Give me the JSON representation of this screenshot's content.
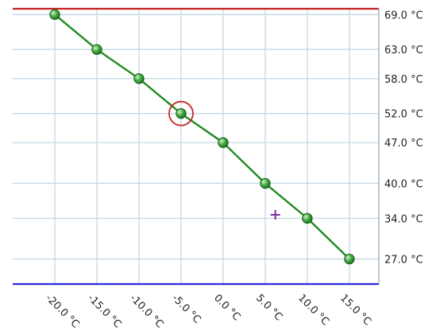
{
  "chart_data": {
    "type": "line",
    "x": [
      -20,
      -15,
      -10,
      -5,
      0,
      5,
      10,
      15
    ],
    "y": [
      69,
      63,
      58,
      52,
      47,
      40,
      34,
      27
    ],
    "x_tick_labels": [
      "-20.0 °C",
      "-15.0 °C",
      "-10.0 °C",
      "-5.0 °C",
      "0.0 °C",
      "5.0 °C",
      "10.0 °C",
      "15.0 °C"
    ],
    "y_tick_values": [
      69,
      63,
      58,
      52,
      47,
      40,
      34,
      27
    ],
    "y_tick_labels": [
      "69.0 °C",
      "63.0 °C",
      "58.0 °C",
      "52.0 °C",
      "47.0 °C",
      "40.0 °C",
      "34.0 °C",
      "27.0 °C"
    ],
    "xlim": [
      -25,
      18.5
    ],
    "ylim": [
      22.7,
      70.0
    ],
    "grid": true,
    "highlighted_point": {
      "x": -5,
      "y": 52
    },
    "cursor_marker": {
      "x": 6.2,
      "y": 34.6
    },
    "colors": {
      "line": "#1f8a1f",
      "marker": "#3aa63a",
      "grid": "#c6d7e3",
      "top_border": "#c42020",
      "bottom_border": "#2a2adb",
      "highlight_ring": "#c42828",
      "cursor": "#7a2aa0"
    }
  }
}
